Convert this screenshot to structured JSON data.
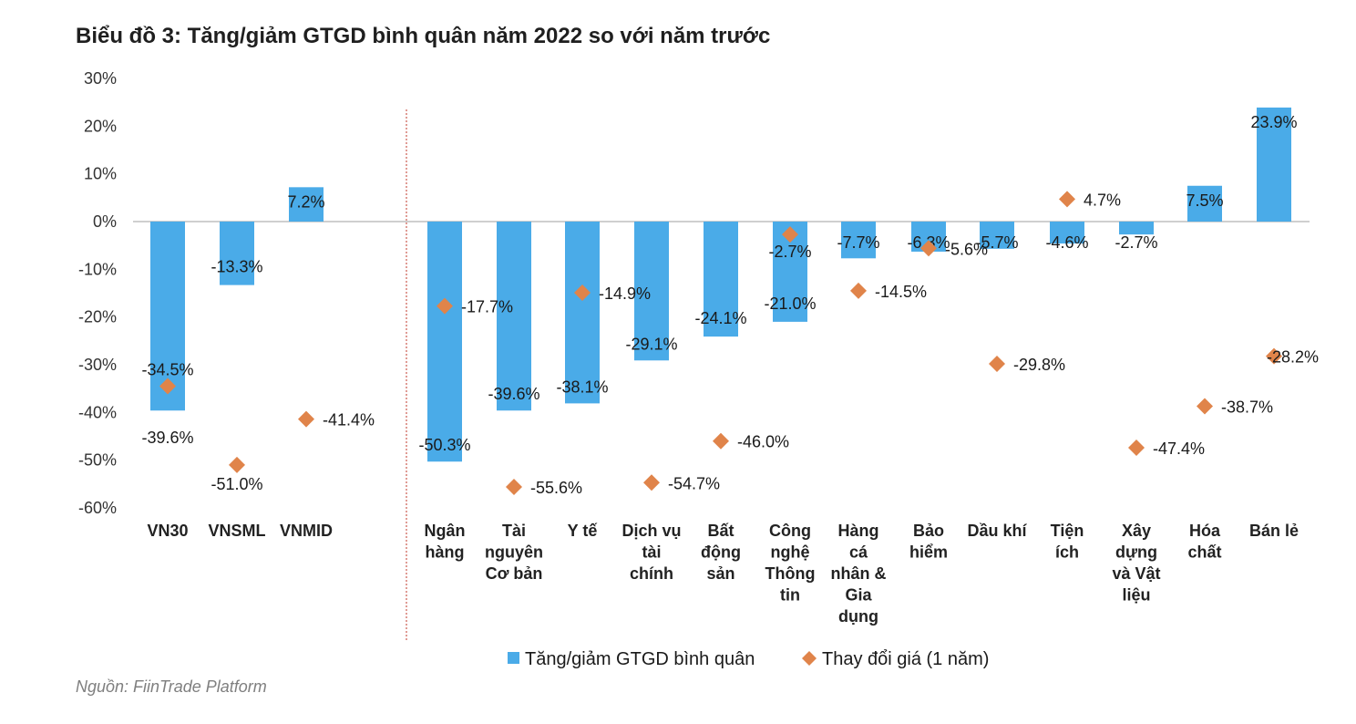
{
  "title": "Biểu đồ 3: Tăng/giảm GTGD bình quân năm 2022 so với năm trước",
  "source": "Nguồn: FiinTrade Platform",
  "colors": {
    "bar": "#4AABE8",
    "marker": "#E0844A",
    "axis": "#BFBFBF",
    "divider": "#C0392B"
  },
  "chart_data": {
    "type": "bar",
    "title": "Biểu đồ 3: Tăng/giảm GTGD bình quân năm 2022 so với năm trước",
    "xlabel": "",
    "ylabel": "",
    "ylim": [
      -60,
      30
    ],
    "yticks": [
      30,
      20,
      10,
      0,
      -10,
      -20,
      -30,
      -40,
      -50,
      -60
    ],
    "ytick_labels": [
      "30%",
      "20%",
      "10%",
      "0%",
      "-10%",
      "-20%",
      "-30%",
      "-40%",
      "-50%",
      "-60%"
    ],
    "groups": [
      {
        "categories": [
          0,
          1,
          2
        ]
      },
      {
        "categories": [
          3,
          4,
          5,
          6,
          7,
          8,
          9,
          10,
          11,
          12,
          13,
          14,
          15
        ]
      }
    ],
    "categories": [
      [
        "VN30"
      ],
      [
        "VNSML"
      ],
      [
        "VNMID"
      ],
      [
        "Ngân",
        "hàng"
      ],
      [
        "Tài",
        "nguyên",
        "Cơ bản"
      ],
      [
        "Y tế"
      ],
      [
        "Dịch vụ",
        "tài",
        "chính"
      ],
      [
        "Bất",
        "động",
        "sản"
      ],
      [
        "Công",
        "nghệ",
        "Thông",
        "tin"
      ],
      [
        "Hàng",
        "cá",
        "nhân &",
        "Gia",
        "dụng"
      ],
      [
        "Bảo",
        "hiểm"
      ],
      [
        "Dầu khí"
      ],
      [
        "Tiện",
        "ích"
      ],
      [
        "Xây",
        "dựng",
        "và Vật",
        "liệu"
      ],
      [
        "Hóa",
        "chất"
      ],
      [
        "Bán lẻ"
      ]
    ],
    "series": [
      {
        "name": "Tăng/giảm GTGD bình quân",
        "type": "bar",
        "values": [
          -39.6,
          -13.3,
          7.2,
          -50.3,
          -39.6,
          -38.1,
          -29.1,
          -24.1,
          -21.0,
          -7.7,
          -6.3,
          -5.7,
          -4.6,
          -2.7,
          7.5,
          23.9
        ],
        "labels": [
          "-39.6%",
          "-13.3%",
          "7.2%",
          "-50.3%",
          "-39.6%",
          "-38.1%",
          "-29.1%",
          "-24.1%",
          "-21.0%",
          "-7.7%",
          "-6.3%",
          "-5.7%",
          "-4.6%",
          "-2.7%",
          "7.5%",
          "23.9%"
        ]
      },
      {
        "name": "Thay đổi giá (1 năm)",
        "type": "scatter",
        "marker": "diamond",
        "values": [
          -34.5,
          -51.0,
          -41.4,
          -17.7,
          -55.6,
          -14.9,
          -54.7,
          -46.0,
          -2.7,
          -14.5,
          -5.6,
          -29.8,
          4.7,
          -47.4,
          -38.7,
          -28.2
        ],
        "labels": [
          "-34.5%",
          "-51.0%",
          "-41.4%",
          "-17.7%",
          "-55.6%",
          "-14.9%",
          "-54.7%",
          "-46.0%",
          "-2.7%",
          "-14.5%",
          "-5.6%",
          "-29.8%",
          "4.7%",
          "-47.4%",
          "-38.7%",
          "-28.2%"
        ]
      }
    ],
    "legend": {
      "position": "bottom",
      "items": [
        "Tăng/giảm GTGD bình quân",
        "Thay đổi giá (1 năm)"
      ]
    }
  }
}
